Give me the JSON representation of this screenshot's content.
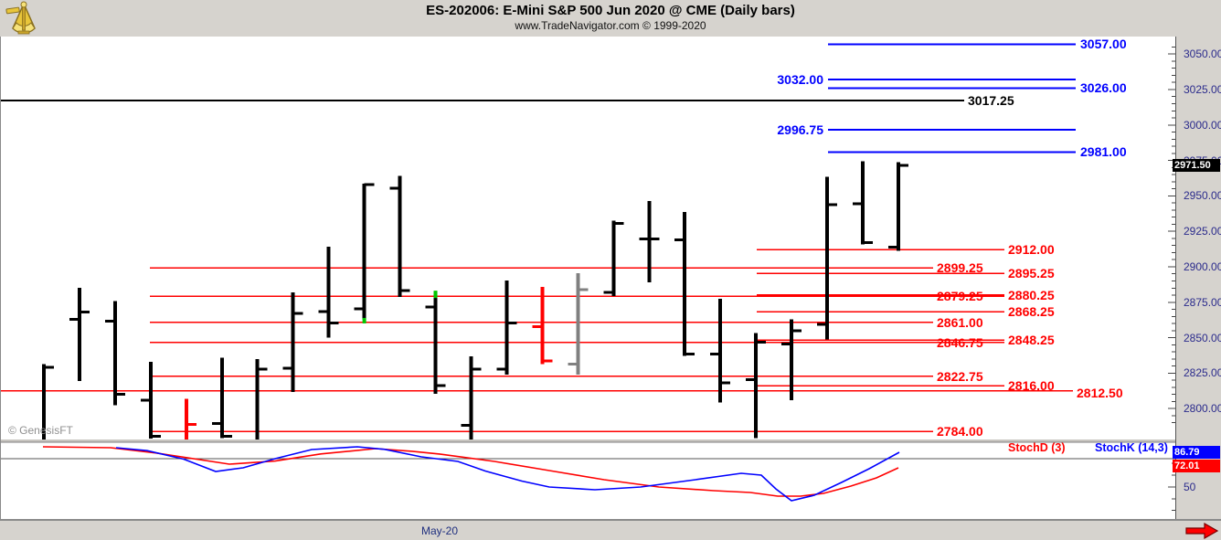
{
  "header": {
    "title": "ES-202006:  E-Mini S&P 500 Jun 2020 @ CME  (Daily bars)",
    "subtitle": "www.TradeNavigator.com © 1999-2020",
    "logo": "sextant-logo"
  },
  "watermark": "© GenesisFT",
  "colors": {
    "panel_bg": "#d6d3ce",
    "axis_text": "#2b2b8c",
    "level_blue": "#0000ff",
    "level_red": "#ff0000",
    "level_black": "#000000",
    "bar_black": "#000000",
    "bar_red": "#ff0000",
    "bar_gray": "#808080",
    "accent_green": "#00c800",
    "badge_price_bg": "#000000",
    "badge_k_bg": "#0000ff",
    "badge_d_bg": "#ff0000",
    "arrow_red": "#ff0000"
  },
  "price_axis": {
    "current_price": "2971.50",
    "labels": [
      "3050.00",
      "3025.00",
      "3000.00",
      "2975.00",
      "2950.00",
      "2925.00",
      "2900.00",
      "2875.00",
      "2850.00",
      "2825.00",
      "2800.00"
    ],
    "values": [
      3050,
      3025,
      3000,
      2975,
      2950,
      2925,
      2900,
      2875,
      2850,
      2825,
      2800
    ]
  },
  "date_axis": {
    "label": "May-20"
  },
  "indicator_panel": {
    "d_label": "StochD (3)",
    "k_label": "StochK (14,3)",
    "k_value": "86.79",
    "d_value": "72.01",
    "axis_label_50": "50"
  },
  "chart_data": {
    "type": "ohlc",
    "symbol": "ES-202006",
    "period": "Daily",
    "levels": {
      "blue": [
        {
          "value": 3057.0,
          "label": "3057.00",
          "label_side": "right"
        },
        {
          "value": 3032.0,
          "label": "3032.00",
          "label_side": "left"
        },
        {
          "value": 3026.0,
          "label": "3026.00",
          "label_side": "right"
        },
        {
          "value": 2996.75,
          "label": "2996.75",
          "label_side": "left"
        },
        {
          "value": 2981.0,
          "label": "2981.00",
          "label_side": "right"
        }
      ],
      "black": [
        {
          "value": 3017.25,
          "label": "3017.25"
        }
      ],
      "red": [
        {
          "value": 2912.0,
          "label": "2912.00",
          "col": "right"
        },
        {
          "value": 2899.25,
          "label": "2899.25",
          "col": "left"
        },
        {
          "value": 2895.25,
          "label": "2895.25",
          "col": "right"
        },
        {
          "value": 2879.25,
          "label": "2879.25",
          "col": "left",
          "strike": true
        },
        {
          "value": 2880.25,
          "label": "2880.25",
          "col": "right"
        },
        {
          "value": 2868.25,
          "label": "2868.25",
          "col": "right"
        },
        {
          "value": 2861.0,
          "label": "2861.00",
          "col": "left"
        },
        {
          "value": 2846.75,
          "label": "2846.75",
          "col": "left",
          "strike": true
        },
        {
          "value": 2848.25,
          "label": "2848.25",
          "col": "right"
        },
        {
          "value": 2822.75,
          "label": "2822.75",
          "col": "left"
        },
        {
          "value": 2816.0,
          "label": "2816.00",
          "col": "right"
        },
        {
          "value": 2812.5,
          "label": "2812.50",
          "col": "full"
        },
        {
          "value": 2784.0,
          "label": "2784.00",
          "col": "left"
        }
      ]
    },
    "bars": [
      {
        "o": null,
        "h": 2831.5,
        "l": 2778.0,
        "c": 2829.0,
        "color": "black"
      },
      {
        "o": 2863.0,
        "h": 2885.25,
        "l": 2819.5,
        "c": 2868.0,
        "color": "black"
      },
      {
        "o": 2861.5,
        "h": 2875.75,
        "l": 2802.25,
        "c": 2810.0,
        "color": "black"
      },
      {
        "o": 2806.0,
        "h": 2833.0,
        "l": 2778.75,
        "c": 2780.5,
        "color": "black"
      },
      {
        "o": null,
        "h": 2806.75,
        "l": 2778.0,
        "c": 2788.75,
        "color": "red"
      },
      {
        "o": 2789.5,
        "h": 2836.0,
        "l": 2779.25,
        "c": 2780.5,
        "color": "black"
      },
      {
        "o": null,
        "h": 2834.75,
        "l": 2777.5,
        "c": 2827.75,
        "color": "black"
      },
      {
        "o": 2828.5,
        "h": 2882.0,
        "l": 2811.75,
        "c": 2867.25,
        "color": "black"
      },
      {
        "o": 2868.5,
        "h": 2914.0,
        "l": 2850.0,
        "c": 2860.25,
        "color": "black"
      },
      {
        "o": 2870.5,
        "h": 2958.5,
        "l": 2863.0,
        "c": 2958.0,
        "color": "black",
        "green_dot": 2862.0
      },
      {
        "o": 2955.25,
        "h": 2964.25,
        "l": 2878.75,
        "c": 2883.25,
        "color": "black"
      },
      {
        "o": 2871.75,
        "h": 2882.5,
        "l": 2810.5,
        "c": 2816.25,
        "color": "black",
        "green_top": true
      },
      {
        "o": 2788.25,
        "h": 2836.75,
        "l": 2777.5,
        "c": 2827.75,
        "color": "black"
      },
      {
        "o": 2827.75,
        "h": 2890.25,
        "l": 2824.0,
        "c": 2860.25,
        "color": "black"
      },
      {
        "o": 2857.75,
        "h": 2885.75,
        "l": 2831.5,
        "c": 2833.5,
        "color": "red"
      },
      {
        "o": 2831.5,
        "h": 2895.5,
        "l": 2824.0,
        "c": 2884.0,
        "color": "gray"
      },
      {
        "o": 2882.0,
        "h": 2932.5,
        "l": 2879.5,
        "c": 2930.5,
        "color": "black"
      },
      {
        "o": 2919.75,
        "h": 2946.5,
        "l": 2889.0,
        "c": 2919.75,
        "color": "black"
      },
      {
        "o": 2919.0,
        "h": 2938.75,
        "l": 2837.25,
        "c": 2838.5,
        "color": "black"
      },
      {
        "o": 2838.5,
        "h": 2877.5,
        "l": 2804.25,
        "c": 2818.25,
        "color": "black"
      },
      {
        "o": 2820.25,
        "h": 2853.25,
        "l": 2779.25,
        "c": 2846.75,
        "color": "black"
      },
      {
        "o": 2845.5,
        "h": 2863.0,
        "l": 2806.0,
        "c": 2854.75,
        "color": "black"
      },
      {
        "o": 2859.5,
        "h": 2963.5,
        "l": 2848.75,
        "c": 2943.75,
        "color": "black"
      },
      {
        "o": 2944.5,
        "h": 2974.5,
        "l": 2915.75,
        "c": 2917.0,
        "color": "black"
      },
      {
        "o": 2913.75,
        "h": 2973.75,
        "l": 2911.25,
        "c": 2971.5,
        "color": "black"
      }
    ],
    "stochastic": {
      "k_last": 86.79,
      "d_last": 72.01,
      "overbought_line": 80,
      "k_points": [
        [
          126,
          91.6
        ],
        [
          160,
          88.5
        ],
        [
          200,
          79.5
        ],
        [
          235,
          66.4
        ],
        [
          265,
          70.3
        ],
        [
          300,
          80.0
        ],
        [
          340,
          89.7
        ],
        [
          390,
          92.6
        ],
        [
          420,
          89.9
        ],
        [
          460,
          81.9
        ],
        [
          500,
          77.1
        ],
        [
          530,
          66.9
        ],
        [
          570,
          56.2
        ],
        [
          600,
          49.9
        ],
        [
          650,
          47.0
        ],
        [
          700,
          49.9
        ],
        [
          760,
          57.7
        ],
        [
          810,
          64.5
        ],
        [
          832,
          62.5
        ],
        [
          848,
          47.9
        ],
        [
          865,
          35.3
        ],
        [
          890,
          41.2
        ],
        [
          920,
          54.8
        ],
        [
          950,
          69.3
        ],
        [
          983,
          86.8
        ]
      ],
      "d_points": [
        [
          46,
          92.6
        ],
        [
          120,
          91.6
        ],
        [
          170,
          86.0
        ],
        [
          250,
          74.2
        ],
        [
          300,
          77.5
        ],
        [
          350,
          85.0
        ],
        [
          410,
          90.7
        ],
        [
          450,
          87.9
        ],
        [
          480,
          84.9
        ],
        [
          540,
          77.1
        ],
        [
          600,
          67.4
        ],
        [
          660,
          57.7
        ],
        [
          720,
          49.9
        ],
        [
          780,
          46.0
        ],
        [
          820,
          44.1
        ],
        [
          850,
          40.2
        ],
        [
          875,
          40.2
        ],
        [
          900,
          43.1
        ],
        [
          930,
          50.9
        ],
        [
          958,
          59.6
        ],
        [
          982,
          70.3
        ]
      ]
    }
  }
}
